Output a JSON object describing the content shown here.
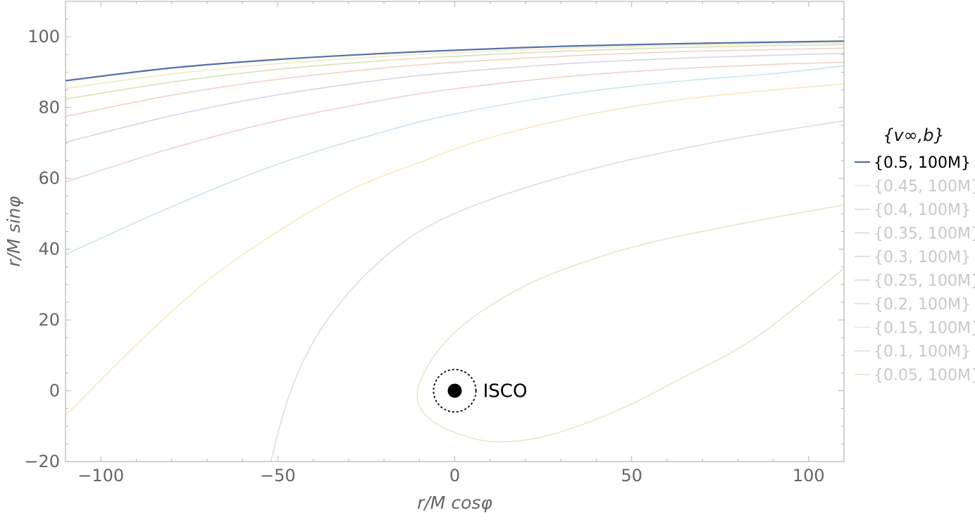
{
  "chart_data": {
    "type": "line",
    "xlabel": "r/M cosφ",
    "ylabel": "r/M sinφ",
    "xlim": [
      -110,
      110
    ],
    "ylim": [
      -20,
      110
    ],
    "x_ticks": [
      "−100",
      "−50",
      "0",
      "50",
      "100"
    ],
    "y_ticks": [
      "−20",
      "0",
      "20",
      "40",
      "60",
      "80",
      "100"
    ],
    "grid": false,
    "legend_title": "{v∞,b}",
    "legend_position": "right",
    "annotation": "ISCO",
    "series": [
      {
        "name": "{0.5, 100M}",
        "color": "#5470a6",
        "highlighted": true,
        "points": [
          [
            -110,
            87.6
          ],
          [
            -80,
            91.2
          ],
          [
            -50,
            93.6
          ],
          [
            -20,
            95.3
          ],
          [
            0,
            96.2
          ],
          [
            30,
            97.3
          ],
          [
            60,
            98.0
          ],
          [
            90,
            98.5
          ],
          [
            110,
            98.8
          ]
        ]
      },
      {
        "name": "{0.45, 100M}",
        "color": "#e6cc80",
        "highlighted": false,
        "points": [
          [
            -110,
            85.4
          ],
          [
            -80,
            89.5
          ],
          [
            -50,
            92.4
          ],
          [
            -20,
            94.5
          ],
          [
            0,
            95.5
          ],
          [
            30,
            96.7
          ],
          [
            60,
            97.5
          ],
          [
            90,
            98.1
          ],
          [
            110,
            98.3
          ]
        ]
      },
      {
        "name": "{0.4, 100M}",
        "color": "#a9bd5f",
        "highlighted": false,
        "points": [
          [
            -110,
            82.4
          ],
          [
            -80,
            87.2
          ],
          [
            -50,
            90.8
          ],
          [
            -20,
            93.3
          ],
          [
            0,
            94.5
          ],
          [
            30,
            95.9
          ],
          [
            60,
            96.9
          ],
          [
            90,
            97.5
          ],
          [
            110,
            97.8
          ]
        ]
      },
      {
        "name": "{0.35, 100M}",
        "color": "#e19a80",
        "highlighted": false,
        "points": [
          [
            -110,
            77.5
          ],
          [
            -80,
            83.5
          ],
          [
            -50,
            88.0
          ],
          [
            -20,
            91.2
          ],
          [
            0,
            92.8
          ],
          [
            30,
            94.5
          ],
          [
            60,
            95.7
          ],
          [
            90,
            96.4
          ],
          [
            110,
            96.8
          ]
        ]
      },
      {
        "name": "{0.3, 100M}",
        "color": "#a39dcc",
        "highlighted": false,
        "points": [
          [
            -110,
            70.2
          ],
          [
            -80,
            77.7
          ],
          [
            -50,
            83.6
          ],
          [
            -20,
            87.9
          ],
          [
            0,
            90.0
          ],
          [
            30,
            92.3
          ],
          [
            60,
            93.8
          ],
          [
            90,
            94.8
          ],
          [
            110,
            95.3
          ]
        ]
      },
      {
        "name": "{0.25, 100M}",
        "color": "#d99a8c",
        "highlighted": false,
        "points": [
          [
            -110,
            59.0
          ],
          [
            -80,
            68.5
          ],
          [
            -50,
            76.3
          ],
          [
            -20,
            82.2
          ],
          [
            0,
            85.3
          ],
          [
            30,
            88.6
          ],
          [
            60,
            90.8
          ],
          [
            90,
            92.2
          ],
          [
            110,
            92.8
          ]
        ]
      },
      {
        "name": "{0.2, 100M}",
        "color": "#8fc1dd",
        "highlighted": false,
        "points": [
          [
            -110,
            38.5
          ],
          [
            -80,
            52.0
          ],
          [
            -50,
            64.0
          ],
          [
            -20,
            73.2
          ],
          [
            0,
            78.2
          ],
          [
            30,
            83.5
          ],
          [
            60,
            87.1
          ],
          [
            90,
            89.6
          ],
          [
            110,
            91.8
          ]
        ]
      },
      {
        "name": "{0.15, 100M}",
        "color": "#efcf6a",
        "highlighted": false,
        "points": [
          [
            -110,
            -7.0
          ],
          [
            -90,
            13.0
          ],
          [
            -70,
            31.0
          ],
          [
            -50,
            45.0
          ],
          [
            -30,
            56.5
          ],
          [
            -10,
            64.5
          ],
          [
            10,
            71.5
          ],
          [
            40,
            78.5
          ],
          [
            70,
            83.0
          ],
          [
            110,
            86.7
          ]
        ]
      },
      {
        "name": "{0.1, 100M}",
        "color": "#c9a6c6",
        "highlighted": false,
        "points": [
          [
            -52,
            -20.0
          ],
          [
            -48,
            -5.0
          ],
          [
            -43,
            8.0
          ],
          [
            -36,
            20.0
          ],
          [
            -25,
            33.0
          ],
          [
            -10,
            45.0
          ],
          [
            10,
            54.0
          ],
          [
            40,
            63.0
          ],
          [
            75,
            70.5
          ],
          [
            110,
            76.3
          ]
        ]
      },
      {
        "name": "{0.05, 100M}",
        "color": "#bccb86",
        "highlighted": false,
        "points": [
          [
            110,
            52.5
          ],
          [
            80,
            47.0
          ],
          [
            50,
            40.5
          ],
          [
            25,
            32.0
          ],
          [
            10,
            24.0
          ],
          [
            0,
            16.5
          ],
          [
            -7,
            8.0
          ],
          [
            -10.5,
            0.0
          ],
          [
            -9,
            -6.0
          ],
          [
            -2,
            -11.0
          ],
          [
            10,
            -14.3
          ],
          [
            25,
            -13.0
          ],
          [
            45,
            -6.0
          ],
          [
            65,
            4.0
          ],
          [
            85,
            15.0
          ],
          [
            110,
            34.5
          ]
        ]
      }
    ],
    "center_body": {
      "x": 0,
      "y": 0,
      "isco_radius": 6
    }
  }
}
